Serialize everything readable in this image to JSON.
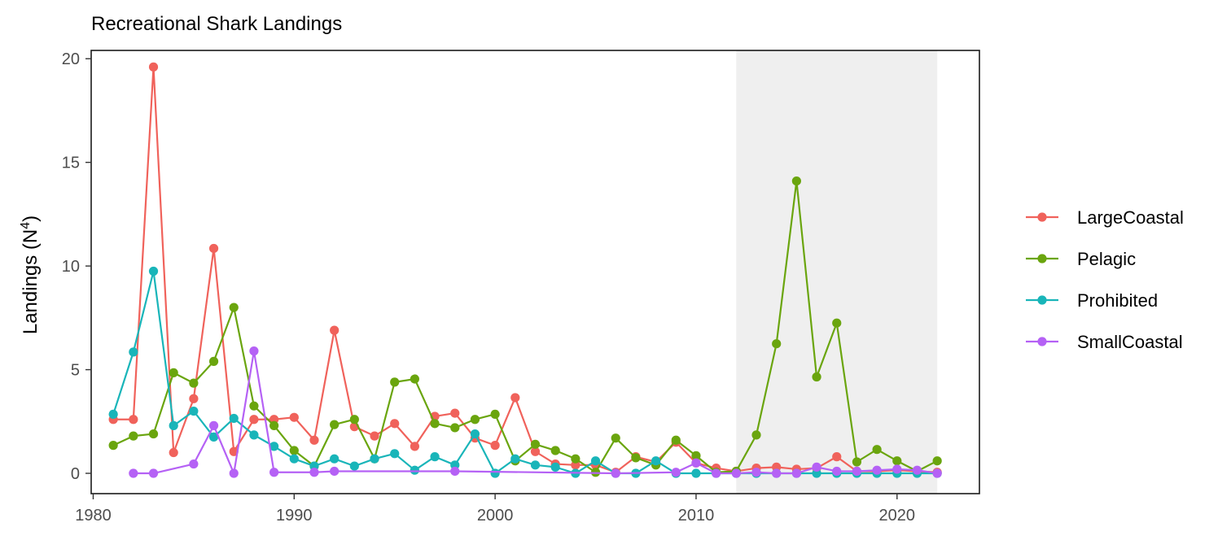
{
  "chart_data": {
    "type": "line",
    "title": "Recreational Shark Landings",
    "xlabel": "",
    "ylabel": "Landings (N",
    "ylabel_sup": "4",
    "ylabel_close": ")",
    "xlim": [
      1979.9,
      2024.1
    ],
    "ylim": [
      -0.98,
      20.4
    ],
    "xticks": [
      1980,
      1990,
      2000,
      2010,
      2020
    ],
    "yticks": [
      0,
      5,
      10,
      15,
      20
    ],
    "grid": false,
    "legend_position": "right",
    "shaded_region": {
      "x": [
        2012,
        2022
      ],
      "color": "#efefef"
    },
    "colors": {
      "LargeCoastal": "#f0625b",
      "Pelagic": "#6aa50e",
      "Prohibited": "#19b5b9",
      "SmallCoastal": "#b561f5"
    },
    "series": [
      {
        "name": "LargeCoastal",
        "x": [
          1981,
          1982,
          1983,
          1984,
          1985,
          1986,
          1987,
          1988,
          1989,
          1990,
          1991,
          1992,
          1993,
          1994,
          1995,
          1996,
          1997,
          1998,
          1999,
          2000,
          2001,
          2002,
          2003,
          2004,
          2005,
          2006,
          2007,
          2008,
          2009,
          2010,
          2011,
          2012,
          2013,
          2014,
          2015,
          2016,
          2017,
          2018,
          2019,
          2020,
          2021,
          2022
        ],
        "values": [
          2.6,
          2.6,
          19.6,
          1.0,
          3.6,
          10.85,
          1.05,
          2.6,
          2.6,
          2.7,
          1.6,
          6.9,
          2.25,
          1.8,
          2.4,
          1.3,
          2.75,
          2.9,
          1.7,
          1.35,
          3.65,
          1.05,
          0.45,
          0.4,
          0.4,
          0.05,
          0.8,
          0.55,
          1.5,
          0.5,
          0.25,
          0.1,
          0.25,
          0.3,
          0.2,
          0.25,
          0.8,
          0.1,
          0.1,
          0.15,
          0.1,
          0.05
        ]
      },
      {
        "name": "Pelagic",
        "x": [
          1981,
          1982,
          1983,
          1984,
          1985,
          1986,
          1987,
          1988,
          1989,
          1990,
          1991,
          1992,
          1993,
          1994,
          1995,
          1996,
          1997,
          1998,
          1999,
          2000,
          2001,
          2002,
          2003,
          2004,
          2005,
          2006,
          2007,
          2008,
          2009,
          2010,
          2011,
          2012,
          2013,
          2014,
          2015,
          2016,
          2017,
          2018,
          2019,
          2020,
          2021,
          2022
        ],
        "values": [
          1.35,
          1.8,
          1.9,
          4.85,
          4.35,
          5.4,
          8.0,
          3.25,
          2.3,
          1.1,
          0.35,
          2.35,
          2.6,
          0.7,
          4.4,
          4.55,
          2.4,
          2.2,
          2.6,
          2.85,
          0.6,
          1.4,
          1.1,
          0.7,
          0.05,
          1.7,
          0.75,
          0.4,
          1.6,
          0.85,
          0.05,
          0.1,
          1.85,
          6.25,
          14.1,
          4.65,
          7.25,
          0.55,
          1.15,
          0.6,
          0.1,
          0.6
        ]
      },
      {
        "name": "Prohibited",
        "x": [
          1981,
          1982,
          1983,
          1984,
          1985,
          1986,
          1987,
          1988,
          1989,
          1990,
          1991,
          1992,
          1993,
          1994,
          1995,
          1996,
          1997,
          1998,
          1999,
          2000,
          2001,
          2002,
          2003,
          2004,
          2005,
          2006,
          2007,
          2008,
          2009,
          2010,
          2011,
          2012,
          2013,
          2014,
          2015,
          2016,
          2017,
          2018,
          2019,
          2020,
          2021,
          2022
        ],
        "values": [
          2.85,
          5.85,
          9.75,
          2.3,
          3.0,
          1.75,
          2.65,
          1.85,
          1.3,
          0.7,
          0.35,
          0.7,
          0.35,
          0.7,
          0.95,
          0.15,
          0.8,
          0.4,
          1.9,
          0.0,
          0.7,
          0.4,
          0.3,
          0.0,
          0.6,
          0.0,
          0.0,
          0.6,
          0.0,
          0.0,
          0.0,
          0.0,
          0.0,
          0.0,
          0.0,
          0.0,
          0.0,
          0.0,
          0.0,
          0.0,
          0.0,
          0.0
        ]
      },
      {
        "name": "SmallCoastal",
        "x": [
          1982,
          1983,
          1985,
          1986,
          1987,
          1988,
          1989,
          1991,
          1992,
          1998,
          2006,
          2009,
          2010,
          2011,
          2012,
          2013,
          2014,
          2015,
          2016,
          2017,
          2018,
          2019,
          2020,
          2021,
          2022
        ],
        "values": [
          0.0,
          0.0,
          0.45,
          2.3,
          0.0,
          5.9,
          0.05,
          0.05,
          0.1,
          0.1,
          0.0,
          0.05,
          0.5,
          0.0,
          0.0,
          0.05,
          0.0,
          0.0,
          0.3,
          0.1,
          0.1,
          0.15,
          0.2,
          0.15,
          0.0
        ]
      }
    ]
  }
}
